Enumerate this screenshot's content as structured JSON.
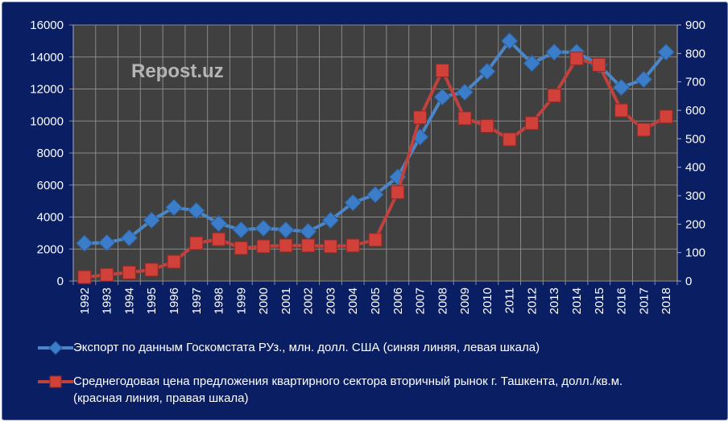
{
  "chart_data": {
    "type": "line",
    "watermark": "Repost.uz",
    "categories": [
      "1992",
      "1993",
      "1994",
      "1995",
      "1996",
      "1997",
      "1998",
      "1999",
      "2000",
      "2001",
      "2002",
      "2003",
      "2004",
      "2005",
      "2006",
      "2007",
      "2008",
      "2009",
      "2010",
      "2011",
      "2012",
      "2013",
      "2014",
      "2015",
      "2016",
      "2017",
      "2018"
    ],
    "left_axis": {
      "min": 0,
      "max": 16000,
      "step": 2000,
      "ticks": [
        "0",
        "2000",
        "4000",
        "6000",
        "8000",
        "10000",
        "12000",
        "14000",
        "16000"
      ]
    },
    "right_axis": {
      "min": 0,
      "max": 900,
      "step": 100,
      "ticks": [
        "0",
        "100",
        "200",
        "300",
        "400",
        "500",
        "600",
        "700",
        "800",
        "900"
      ]
    },
    "grid": true,
    "legend_placement": "bottom",
    "series": [
      {
        "name": "Экспорт по данным Госкомстата РУз., млн. долл. США (синяя линяя, левая шкала)",
        "axis": "left",
        "color": "#4a86c8",
        "marker": "diamond",
        "values": [
          2360,
          2400,
          2700,
          3800,
          4600,
          4400,
          3600,
          3200,
          3300,
          3200,
          3100,
          3800,
          4900,
          5400,
          6500,
          9000,
          11500,
          11800,
          13100,
          15000,
          13600,
          14300,
          14300,
          13500,
          12100,
          12600,
          14300
        ]
      },
      {
        "name": "Среднегодовая цена предложения квартирного сектора вторичный рынок г. Ташкента, долл./кв.м.",
        "name_line2": "(красная линия, правая шкала)",
        "axis": "right",
        "color": "#c0413d",
        "marker": "square",
        "values": [
          14,
          22,
          30,
          40,
          68,
          133,
          147,
          116,
          122,
          125,
          125,
          122,
          125,
          145,
          312,
          575,
          740,
          572,
          545,
          498,
          555,
          652,
          782,
          760,
          600,
          532,
          578
        ]
      }
    ]
  }
}
